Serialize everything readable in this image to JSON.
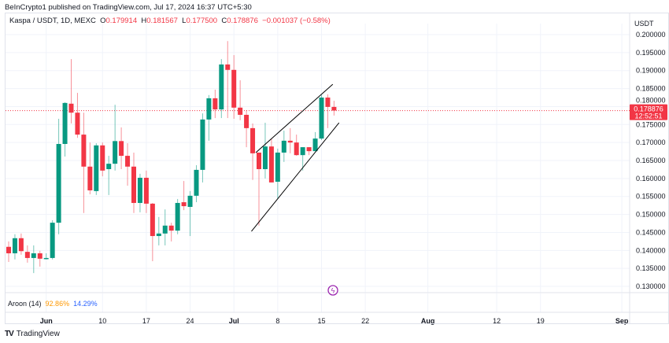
{
  "header": {
    "published": "BeInCrypto1 published on TradingView.com, Jul 17, 2024 16:37 UTC+5:30"
  },
  "legend": {
    "symbol": "Kaspa / USDT, 1D, MEXC",
    "o_label": "O",
    "o": "0.179914",
    "h_label": "H",
    "h": "0.181567",
    "l_label": "L",
    "l": "0.177500",
    "c_label": "C",
    "c": "0.178876",
    "change": "−0.001037 (−0.58%)"
  },
  "currency": "USDT",
  "price_tag": {
    "price": "0.178876",
    "countdown": "12:52:51"
  },
  "aroon": {
    "label": "Aroon (14)",
    "up": "92.86%",
    "down": "14.29%",
    "up_color": "#ff9800",
    "down_color": "#2962ff"
  },
  "footer": {
    "brand": "TradingView"
  },
  "colors": {
    "up": "#089981",
    "down": "#f23645",
    "pattern": "#000000"
  },
  "chart_data": {
    "type": "candlestick",
    "start_date": "2024-05-26",
    "ylim": [
      0.13,
      0.2
    ],
    "y_ticks": [
      "0.200000",
      "0.195000",
      "0.190000",
      "0.185000",
      "0.180000",
      "0.175000",
      "0.170000",
      "0.165000",
      "0.160000",
      "0.155000",
      "0.150000",
      "0.145000",
      "0.140000",
      "0.135000",
      "0.130000"
    ],
    "x_ticks": [
      {
        "label": "Jun",
        "day": 6,
        "bold": true
      },
      {
        "label": "10",
        "day": 15
      },
      {
        "label": "17",
        "day": 22
      },
      {
        "label": "24",
        "day": 29
      },
      {
        "label": "Jul",
        "day": 36,
        "bold": true
      },
      {
        "label": "8",
        "day": 43
      },
      {
        "label": "15",
        "day": 50
      },
      {
        "label": "22",
        "day": 57
      },
      {
        "label": "Aug",
        "day": 67,
        "bold": true
      },
      {
        "label": "12",
        "day": 78
      },
      {
        "label": "19",
        "day": 85
      },
      {
        "label": "Sep",
        "day": 98,
        "bold": true
      }
    ],
    "ohlc": [
      [
        0.141,
        0.1425,
        0.1368,
        0.1392
      ],
      [
        0.1392,
        0.1445,
        0.1375,
        0.1434
      ],
      [
        0.1434,
        0.1447,
        0.1388,
        0.1398
      ],
      [
        0.1396,
        0.1414,
        0.1366,
        0.1379
      ],
      [
        0.1379,
        0.1414,
        0.1337,
        0.1392
      ],
      [
        0.1392,
        0.1399,
        0.1355,
        0.1377
      ],
      [
        0.1377,
        0.1392,
        0.1375,
        0.1379
      ],
      [
        0.1379,
        0.1484,
        0.1375,
        0.1477
      ],
      [
        0.1477,
        0.1766,
        0.1445,
        0.1696
      ],
      [
        0.1696,
        0.1812,
        0.1661,
        0.181
      ],
      [
        0.1808,
        0.1932,
        0.1753,
        0.1783
      ],
      [
        0.1783,
        0.1838,
        0.1713,
        0.1722
      ],
      [
        0.1722,
        0.1783,
        0.1504,
        0.1633
      ],
      [
        0.1633,
        0.17,
        0.1556,
        0.1567
      ],
      [
        0.1565,
        0.1698,
        0.1554,
        0.1692
      ],
      [
        0.1692,
        0.17,
        0.1606,
        0.1622
      ],
      [
        0.1626,
        0.1663,
        0.1554,
        0.1641
      ],
      [
        0.1641,
        0.1805,
        0.1622,
        0.1704
      ],
      [
        0.1704,
        0.1742,
        0.1626,
        0.1663
      ],
      [
        0.1663,
        0.1698,
        0.158,
        0.1633
      ],
      [
        0.1633,
        0.1672,
        0.1504,
        0.1532
      ],
      [
        0.1532,
        0.1613,
        0.1506,
        0.1602
      ],
      [
        0.1602,
        0.1622,
        0.1504,
        0.153
      ],
      [
        0.153,
        0.1532,
        0.137,
        0.144
      ],
      [
        0.144,
        0.1493,
        0.1414,
        0.1447
      ],
      [
        0.1447,
        0.1514,
        0.1414,
        0.1469
      ],
      [
        0.1469,
        0.1477,
        0.1425,
        0.1455
      ],
      [
        0.1455,
        0.1543,
        0.1445,
        0.1532
      ],
      [
        0.1534,
        0.1593,
        0.1512,
        0.1523
      ],
      [
        0.1521,
        0.1565,
        0.144,
        0.1552
      ],
      [
        0.1552,
        0.1637,
        0.1534,
        0.1624
      ],
      [
        0.1624,
        0.1781,
        0.1589,
        0.1764
      ],
      [
        0.1764,
        0.1832,
        0.1705,
        0.1823
      ],
      [
        0.1823,
        0.1847,
        0.1768,
        0.1792
      ],
      [
        0.1792,
        0.1932,
        0.1768,
        0.1917
      ],
      [
        0.1917,
        0.1982,
        0.1768,
        0.1902
      ],
      [
        0.1902,
        0.1943,
        0.1766,
        0.1797
      ],
      [
        0.1797,
        0.1873,
        0.1762,
        0.1777
      ],
      [
        0.1777,
        0.179,
        0.1687,
        0.174
      ],
      [
        0.174,
        0.1753,
        0.1596,
        0.167
      ],
      [
        0.1672,
        0.1672,
        0.1469,
        0.1626
      ],
      [
        0.1626,
        0.1755,
        0.16,
        0.1689
      ],
      [
        0.1689,
        0.1711,
        0.1589,
        0.1589
      ],
      [
        0.1591,
        0.1683,
        0.1543,
        0.1672
      ],
      [
        0.1672,
        0.1733,
        0.1646,
        0.1705
      ],
      [
        0.1705,
        0.174,
        0.167,
        0.17
      ],
      [
        0.17,
        0.1722,
        0.1663,
        0.1665
      ],
      [
        0.1665,
        0.1687,
        0.1622,
        0.1687
      ],
      [
        0.1687,
        0.1687,
        0.1665,
        0.1676
      ],
      [
        0.1676,
        0.1729,
        0.1676,
        0.1711
      ],
      [
        0.1711,
        0.1832,
        0.1707,
        0.1825
      ],
      [
        0.1825,
        0.1834,
        0.174,
        0.1799
      ],
      [
        0.1799,
        0.1816,
        0.1775,
        0.1789
      ]
    ],
    "trendlines": [
      {
        "name": "wedge-upper",
        "from": [
          39.5,
          0.1672
        ],
        "to": [
          51.8,
          0.1862
        ]
      },
      {
        "name": "wedge-lower",
        "from": [
          38.8,
          0.1453
        ],
        "to": [
          52.8,
          0.1755
        ]
      }
    ],
    "last_price": 0.178876
  }
}
